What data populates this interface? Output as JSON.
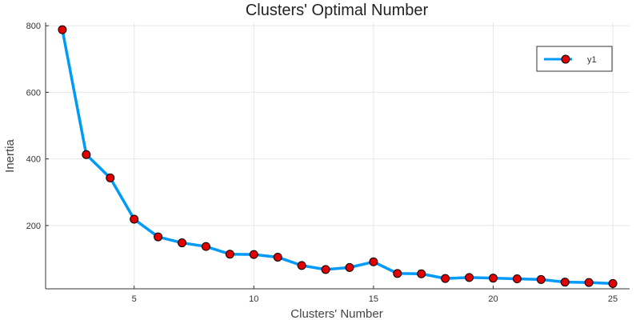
{
  "chart_data": {
    "type": "line",
    "title": "Clusters' Optimal  Number",
    "xlabel": "Clusters' Number",
    "ylabel": "Inertia",
    "xlim": [
      1.3,
      25.7
    ],
    "ylim": [
      10,
      810
    ],
    "xticks": [
      5,
      10,
      15,
      20,
      25
    ],
    "yticks": [
      200,
      400,
      600,
      800
    ],
    "grid": true,
    "legend_position": "top-right",
    "series": [
      {
        "name": "y1",
        "line_color": "#009af9",
        "marker_color": "#e20000",
        "x": [
          2,
          3,
          4,
          5,
          6,
          7,
          8,
          9,
          10,
          11,
          12,
          13,
          14,
          15,
          16,
          17,
          18,
          19,
          20,
          21,
          22,
          23,
          24,
          25
        ],
        "y": [
          788,
          413,
          343,
          219,
          166,
          148,
          137,
          114,
          113,
          105,
          80,
          68,
          74,
          91,
          56,
          55,
          41,
          44,
          42,
          40,
          38,
          30,
          29,
          26
        ]
      }
    ]
  }
}
